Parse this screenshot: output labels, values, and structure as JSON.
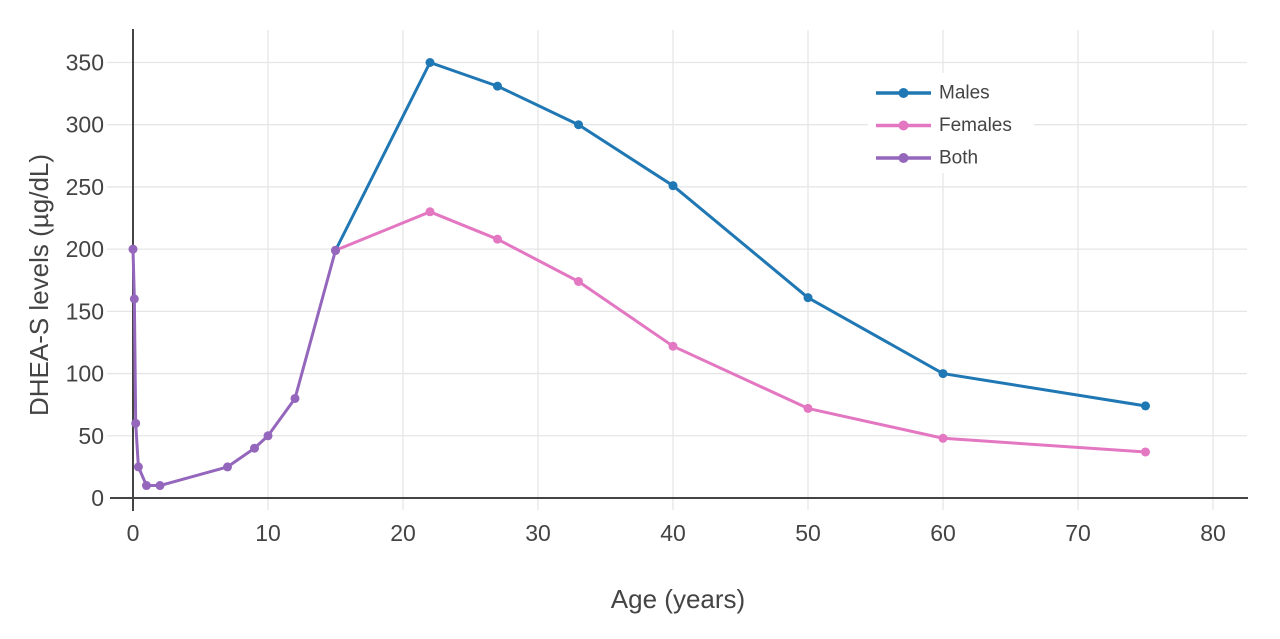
{
  "chart_data": {
    "type": "line",
    "title": "",
    "xlabel": "Age (years)",
    "ylabel": "DHEA-S levels (µg/dL)",
    "xticks": [
      0,
      10,
      20,
      30,
      40,
      50,
      60,
      70,
      80
    ],
    "yticks": [
      0,
      50,
      100,
      150,
      200,
      250,
      300,
      350
    ],
    "xlim": [
      -1.7,
      82.5
    ],
    "ylim": [
      0,
      376
    ],
    "grid": true,
    "legend": {
      "position": "top-right",
      "background": "#ffffff",
      "entries": [
        "Males",
        "Females",
        "Both"
      ]
    },
    "colors": {
      "axis": "#444444",
      "grid": "#e6e6e6",
      "text": "#444444"
    },
    "series": [
      {
        "name": "Males",
        "color": "#1f77b4",
        "x": [
          15,
          22,
          27,
          33,
          40,
          50,
          60,
          75
        ],
        "y": [
          199,
          350,
          331,
          300,
          251,
          161,
          100,
          74
        ]
      },
      {
        "name": "Females",
        "color": "#e377c2",
        "x": [
          15,
          22,
          27,
          33,
          40,
          50,
          60,
          75
        ],
        "y": [
          199,
          230,
          208,
          174,
          122,
          72,
          48,
          37
        ]
      },
      {
        "name": "Both",
        "color": "#9467bd",
        "x": [
          0,
          0.1,
          0.2,
          0.4,
          1,
          2,
          7,
          9,
          10,
          12,
          15
        ],
        "y": [
          200,
          160,
          60,
          25,
          10,
          10,
          25,
          40,
          50,
          80,
          199
        ]
      }
    ]
  }
}
